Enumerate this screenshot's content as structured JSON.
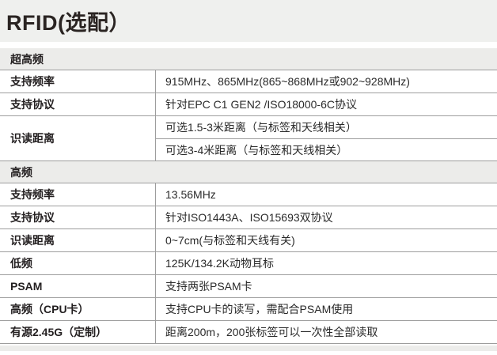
{
  "page": {
    "title": "RFID(选配）"
  },
  "colors": {
    "title_band_bg": "#eff0ee",
    "section_header_bg": "#ececea",
    "row_border": "#9d9d9d",
    "text": "#231f20"
  },
  "table": {
    "rows": [
      {
        "type": "section",
        "label": "超高频"
      },
      {
        "type": "spec",
        "label": "支持频率",
        "values": [
          "915MHz、865MHz(865~868MHz或902~928MHz)"
        ]
      },
      {
        "type": "spec",
        "label": "支持协议",
        "values": [
          "针对EPC C1 GEN2 /ISO18000-6C协议"
        ]
      },
      {
        "type": "spec",
        "label": "识读距离",
        "values": [
          "可选1.5-3米距离（与标签和天线相关）",
          "可选3-4米距离（与标签和天线相关）"
        ]
      },
      {
        "type": "section",
        "label": "高频"
      },
      {
        "type": "spec",
        "label": "支持频率",
        "values": [
          "13.56MHz"
        ]
      },
      {
        "type": "spec",
        "label": "支持协议",
        "values": [
          "针对ISO1443A、ISO15693双协议"
        ]
      },
      {
        "type": "spec",
        "label": "识读距离",
        "values": [
          "0~7cm(与标签和天线有关)"
        ]
      },
      {
        "type": "spec",
        "label": "低频",
        "values": [
          "125K/134.2K动物耳标"
        ]
      },
      {
        "type": "spec",
        "label": "PSAM",
        "values": [
          "支持两张PSAM卡"
        ]
      },
      {
        "type": "spec",
        "label": "高频（CPU卡）",
        "values": [
          "支持CPU卡的读写，需配合PSAM使用"
        ]
      },
      {
        "type": "spec",
        "label": "有源2.45G（定制）",
        "values": [
          "距离200m，200张标签可以一次性全部读取"
        ]
      }
    ]
  }
}
